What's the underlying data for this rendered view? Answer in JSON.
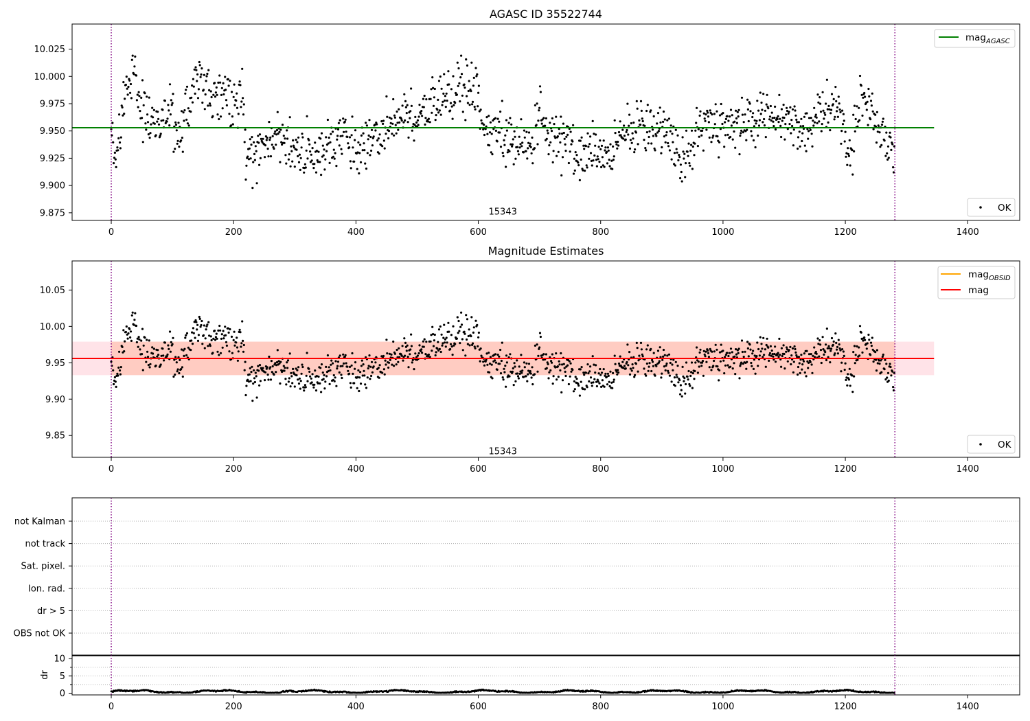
{
  "figure": {
    "suptitle": "AGASC ID 35522744"
  },
  "colors": {
    "points": "#000000",
    "agasc_line": "#008000",
    "mag_line": "#ff0000",
    "mag_obsid_line": "#ffa500",
    "band_pink": "#ffc0cb",
    "band_orange": "#ffa07a",
    "obs_boundary": "#800080",
    "grid": "#b0b0b0"
  },
  "chart_data": [
    {
      "type": "scatter",
      "title": "AGASC ID 35522744",
      "xlim": [
        -64,
        1485
      ],
      "ylim": [
        9.868,
        10.048
      ],
      "xticks": [
        0,
        200,
        400,
        600,
        800,
        1000,
        1200,
        1400
      ],
      "yticks": [
        9.875,
        9.9,
        9.925,
        9.95,
        9.975,
        10.0,
        10.025
      ],
      "ytick_labels": [
        "9.875",
        "9.900",
        "9.925",
        "9.950",
        "9.975",
        "10.000",
        "10.025"
      ],
      "mag_agasc": 9.953,
      "mag_agasc_x_range": [
        0,
        1345
      ],
      "obs_boundaries": [
        0,
        1281
      ],
      "observation_label": {
        "text": "15343",
        "x": 640,
        "y": 9.876
      },
      "legend_lines": [
        {
          "label": "mag",
          "subscript": "AGASC",
          "color_key": "agasc_line"
        }
      ],
      "legend_points": "OK",
      "series": [
        {
          "name": "OK",
          "n_points": 1281,
          "seed": 35522744,
          "y_range": [
            9.897,
            10.019
          ]
        }
      ]
    },
    {
      "type": "scatter",
      "title": "Magnitude Estimates",
      "xlim": [
        -64,
        1485
      ],
      "ylim": [
        9.82,
        10.09
      ],
      "xticks": [
        0,
        200,
        400,
        600,
        800,
        1000,
        1200,
        1400
      ],
      "yticks": [
        9.85,
        9.9,
        9.95,
        10.0,
        10.05
      ],
      "ytick_labels": [
        "9.85",
        "9.90",
        "9.95",
        "10.00",
        "10.05"
      ],
      "mag": 9.956,
      "mag_band": [
        9.933,
        9.979
      ],
      "mag_x_range": [
        0,
        1345
      ],
      "mag_obsid": 9.956,
      "mag_obsid_band": [
        9.933,
        9.979
      ],
      "mag_obsid_x_range": [
        0,
        1281
      ],
      "obs_boundaries": [
        0,
        1281
      ],
      "observation_label": {
        "text": "15343",
        "x": 640,
        "y": 9.828
      },
      "legend_lines": [
        {
          "label": "mag",
          "subscript": "OBSID",
          "color_key": "mag_obsid_line"
        },
        {
          "label": "mag",
          "subscript": "",
          "color_key": "mag_line"
        }
      ],
      "legend_points": "OK",
      "series": [
        {
          "name": "OK",
          "n_points": 1281,
          "seed": 35522744
        }
      ]
    },
    {
      "type": "scatter",
      "title": "",
      "xlim": [
        -64,
        1485
      ],
      "flag_categories": [
        "not Kalman",
        "not track",
        "Sat. pixel.",
        "Ion. rad.",
        "dr > 5",
        "OBS not OK"
      ],
      "flagged_points": 0,
      "obs_boundaries": [
        0,
        1281
      ]
    },
    {
      "type": "scatter",
      "title": "",
      "ylabel": "dr",
      "xlim": [
        -64,
        1485
      ],
      "ylim": [
        -0.5,
        11
      ],
      "yticks": [
        0,
        5,
        10
      ],
      "xticks": [
        0,
        200,
        400,
        600,
        800,
        1000,
        1200,
        1400
      ],
      "obs_boundaries": [
        0,
        1281
      ],
      "series": [
        {
          "name": "dr",
          "n_points": 1281,
          "y_range": [
            0.1,
            1.2
          ]
        }
      ]
    }
  ]
}
